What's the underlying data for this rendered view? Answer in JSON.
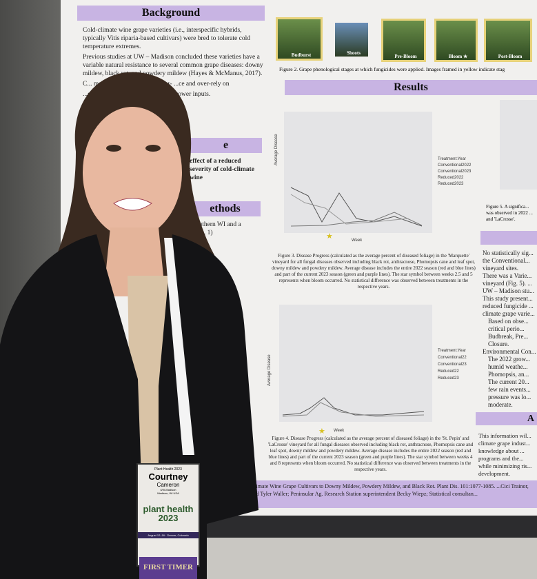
{
  "poster": {
    "background_header": "Background",
    "background_bullets": [
      "Cold-climate wine grape varieties (i.e., interspecific hybrids, typically Vitis riparia-based cultivars) were bred to tolerate cold temperature extremes.",
      "Previous studies at UW – Madison concluded these varieties have a variable natural resistance to several common grape diseases: downy mildew, black rot, and powdery mildew (Hayes & McManus, 2017).",
      "C... management programs under- ...ce and over-rely on",
      "...es the risk of fungicide ...easing grower inputs."
    ],
    "objective_header": "e",
    "objective_text": "effect of a reduced severity of cold-climate wine",
    "methods_header": "ethods",
    "methods_text": "southern WI and a (Fig. 1)",
    "photos": [
      "Budburst",
      "Shoots",
      "Pre-Bloom",
      "Bloom ★",
      "Post-Bloom"
    ],
    "figure2_caption": "Figure 2. Grape phenological stages at which fungicides were applied. Images framed in yellow indicate stag",
    "results_header": "Results",
    "figure3_caption": "Figure 3. Disease Progress (calculated as the average percent of diseased foliage) in the 'Marquette' vineyard for all fungal diseases observed including black rot, anthracnose, Phomopsis cane and leaf spot, downy mildew and powdery mildew. Average disease includes the entire 2022 season (red and blue lines) and part of the current 2023 season (green and purple lines). The star symbol between weeks 2.5 and 5 represents when bloom occurred. No statistical difference was observed between treatments in the respective years.",
    "figure4_caption": "Figure 4. Disease Progress (calculated as the average percent of diseased foliage) in the 'St. Pepin' and 'LaCrosse' vineyard for all fungal diseases observed including black rot, anthracnose, Phomopsis cane and leaf spot, downy mildew and powdery mildew. Average disease includes the entire 2022 season (red and blue lines) and part of the current 2023 season (green and purple lines). The star symbol between weeks 4 and 8 represents when bloom occurred. No statistical difference was observed between treatments in the respective years.",
    "figure5_caption": "Figure 5. A significa... was observed in 2022 ... and 'LaCrosse'.",
    "chart_axis_y": "Average Disease",
    "chart_axis_x": "Week",
    "legend_title": "Treatment:Year",
    "legend1": [
      "Conventional2022",
      "Conventional2023",
      "Reduced2022",
      "Reduced2023"
    ],
    "legend2": [
      "Conventional22",
      "Conventional23",
      "Reduced22",
      "Reduced23"
    ],
    "right_bullets": [
      "No statistically sig... the Conventional... vineyard sites.",
      "There was a Varie... vineyard (Fig. 5). ... UW – Madison stu...",
      "This study present... reduced fungicide ... climate grape varie...",
      "Based on obse... critical perio... Budbreak, Pre... Closure.",
      "Environmental Con...",
      "The 2022 grow... humid weathe... Phomopsis, an...",
      "The current 20... few rain events... pressure was lo... moderate."
    ],
    "right_header2": "A",
    "right_text2": "This information wil... climate grape indust... knowledge about ... programs and the... while minimizing ris... development.",
    "bottom_text": "Climate Wine Grape Cultivars to Downy Mildew, Powdery Mildew, and Black Rot. Plant Dis. 101:1077-1085. ...Cici Trainor, and Tyler Waller; Peninsular Ag. Research Station superintendent Becky Wiepz; Statistical consultan..."
  },
  "badge": {
    "event": "Plant Health 2023",
    "first_name": "Courtney",
    "last_name": "Cameron",
    "org": "UW-Madison",
    "location": "Madison, WI USA",
    "logo": "plant health 2023",
    "dates": "August 12–16 · Denver, Colorado",
    "ribbon": "FIRST TIMER"
  },
  "colors": {
    "header_purple": "#c8b4e3",
    "blazer": "#141416"
  }
}
